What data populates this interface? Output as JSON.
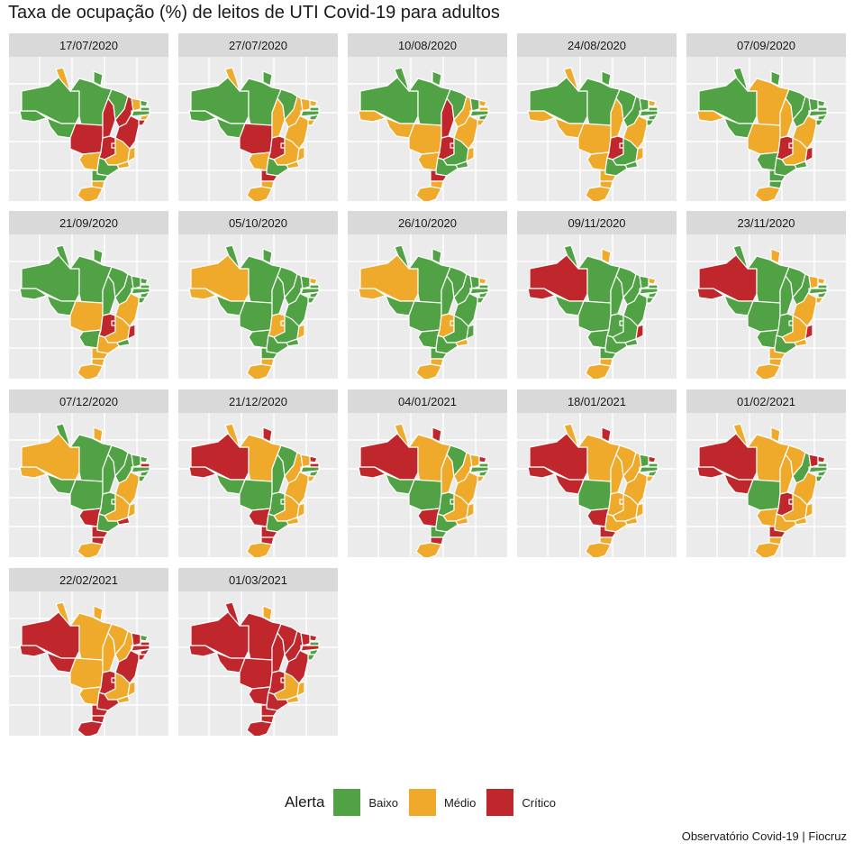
{
  "title": "Taxa de ocupação (%) de leitos de UTI Covid-19 para adultos",
  "caption": "Observatório Covid-19 | Fiocruz",
  "legend": {
    "title": "Alerta",
    "levels": [
      {
        "key": "B",
        "label": "Baixo",
        "color": "#50a244"
      },
      {
        "key": "M",
        "label": "Médio",
        "color": "#efaa2c"
      },
      {
        "key": "C",
        "label": "Crítico",
        "color": "#c0272d"
      }
    ]
  },
  "colors": {
    "panel_background": "#ebebeb",
    "strip_background": "#d9d9d9",
    "gridline": "#ffffff",
    "state_border": "#ffffff"
  },
  "states": [
    "AC",
    "AM",
    "RR",
    "AP",
    "PA",
    "RO",
    "MT",
    "TO",
    "MA",
    "PI",
    "CE",
    "RN",
    "PB",
    "PE",
    "AL",
    "SE",
    "BA",
    "GO",
    "DF",
    "MS",
    "MG",
    "ES",
    "RJ",
    "SP",
    "PR",
    "SC",
    "RS"
  ],
  "panels": [
    {
      "date": "17/07/2020",
      "alerts": {
        "AC": "B",
        "AM": "B",
        "RR": "M",
        "AP": "B",
        "PA": "B",
        "RO": "B",
        "MT": "C",
        "TO": "C",
        "MA": "B",
        "PI": "C",
        "CE": "M",
        "RN": "B",
        "PB": "B",
        "PE": "B",
        "AL": "M",
        "SE": "C",
        "BA": "C",
        "GO": "C",
        "DF": "C",
        "MS": "M",
        "MG": "M",
        "ES": "M",
        "RJ": "M",
        "SP": "B",
        "PR": "B",
        "SC": "M",
        "RS": "M"
      }
    },
    {
      "date": "27/07/2020",
      "alerts": {
        "AC": "B",
        "AM": "B",
        "RR": "M",
        "AP": "B",
        "PA": "B",
        "RO": "B",
        "MT": "C",
        "TO": "M",
        "MA": "B",
        "PI": "M",
        "CE": "M",
        "RN": "M",
        "PB": "B",
        "PE": "B",
        "AL": "B",
        "SE": "M",
        "BA": "M",
        "GO": "C",
        "DF": "C",
        "MS": "M",
        "MG": "M",
        "ES": "M",
        "RJ": "M",
        "SP": "B",
        "PR": "C",
        "SC": "M",
        "RS": "M"
      }
    },
    {
      "date": "10/08/2020",
      "alerts": {
        "AC": "M",
        "AM": "B",
        "RR": "B",
        "AP": "B",
        "PA": "B",
        "RO": "M",
        "MT": "M",
        "TO": "C",
        "MA": "B",
        "PI": "M",
        "CE": "B",
        "RN": "M",
        "PB": "M",
        "PE": "B",
        "AL": "B",
        "SE": "M",
        "BA": "M",
        "GO": "C",
        "DF": "C",
        "MS": "M",
        "MG": "B",
        "ES": "M",
        "RJ": "B",
        "SP": "B",
        "PR": "C",
        "SC": "M",
        "RS": "M"
      }
    },
    {
      "date": "24/08/2020",
      "alerts": {
        "AC": "M",
        "AM": "B",
        "RR": "M",
        "AP": "B",
        "PA": "B",
        "RO": "M",
        "MT": "M",
        "TO": "M",
        "MA": "B",
        "PI": "B",
        "CE": "B",
        "RN": "M",
        "PB": "B",
        "PE": "B",
        "AL": "B",
        "SE": "B",
        "BA": "M",
        "GO": "C",
        "DF": "C",
        "MS": "M",
        "MG": "B",
        "ES": "M",
        "RJ": "B",
        "SP": "B",
        "PR": "M",
        "SC": "M",
        "RS": "M"
      }
    },
    {
      "date": "07/09/2020",
      "alerts": {
        "AC": "M",
        "AM": "B",
        "RR": "B",
        "AP": "B",
        "PA": "M",
        "RO": "B",
        "MT": "M",
        "TO": "M",
        "MA": "B",
        "PI": "B",
        "CE": "B",
        "RN": "B",
        "PB": "B",
        "PE": "B",
        "AL": "B",
        "SE": "B",
        "BA": "M",
        "GO": "C",
        "DF": "C",
        "MS": "B",
        "MG": "M",
        "ES": "C",
        "RJ": "B",
        "SP": "B",
        "PR": "B",
        "SC": "B",
        "RS": "M"
      }
    },
    {
      "date": "21/09/2020",
      "alerts": {
        "AC": "B",
        "AM": "B",
        "RR": "B",
        "AP": "B",
        "PA": "B",
        "RO": "B",
        "MT": "M",
        "TO": "B",
        "MA": "B",
        "PI": "B",
        "CE": "B",
        "RN": "B",
        "PB": "B",
        "PE": "B",
        "AL": "B",
        "SE": "B",
        "BA": "M",
        "GO": "C",
        "DF": "C",
        "MS": "B",
        "MG": "M",
        "ES": "C",
        "RJ": "B",
        "SP": "M",
        "PR": "M",
        "SC": "M",
        "RS": "M"
      }
    },
    {
      "date": "05/10/2020",
      "alerts": {
        "AC": "M",
        "AM": "M",
        "RR": "B",
        "AP": "B",
        "PA": "B",
        "RO": "B",
        "MT": "B",
        "TO": "B",
        "MA": "B",
        "PI": "B",
        "CE": "B",
        "RN": "M",
        "PB": "B",
        "PE": "B",
        "AL": "B",
        "SE": "B",
        "BA": "B",
        "GO": "M",
        "DF": "M",
        "MS": "B",
        "MG": "B",
        "ES": "M",
        "RJ": "B",
        "SP": "B",
        "PR": "B",
        "SC": "M",
        "RS": "M"
      }
    },
    {
      "date": "26/10/2020",
      "alerts": {
        "AC": "M",
        "AM": "M",
        "RR": "B",
        "AP": "B",
        "PA": "B",
        "RO": "B",
        "MT": "B",
        "TO": "B",
        "MA": "B",
        "PI": "B",
        "CE": "B",
        "RN": "M",
        "PB": "B",
        "PE": "B",
        "AL": "B",
        "SE": "B",
        "BA": "B",
        "GO": "M",
        "DF": "M",
        "MS": "B",
        "MG": "B",
        "ES": "B",
        "RJ": "M",
        "SP": "B",
        "PR": "B",
        "SC": "M",
        "RS": "M"
      }
    },
    {
      "date": "09/11/2020",
      "alerts": {
        "AC": "C",
        "AM": "C",
        "RR": "B",
        "AP": "M",
        "PA": "B",
        "RO": "B",
        "MT": "B",
        "TO": "B",
        "MA": "B",
        "PI": "B",
        "CE": "B",
        "RN": "M",
        "PB": "B",
        "PE": "B",
        "AL": "B",
        "SE": "B",
        "BA": "B",
        "GO": "B",
        "DF": "B",
        "MS": "B",
        "MG": "B",
        "ES": "C",
        "RJ": "B",
        "SP": "B",
        "PR": "B",
        "SC": "M",
        "RS": "M"
      }
    },
    {
      "date": "23/11/2020",
      "alerts": {
        "AC": "C",
        "AM": "C",
        "RR": "B",
        "AP": "M",
        "PA": "B",
        "RO": "B",
        "MT": "B",
        "TO": "B",
        "MA": "B",
        "PI": "B",
        "CE": "M",
        "RN": "M",
        "PB": "B",
        "PE": "B",
        "AL": "B",
        "SE": "M",
        "BA": "M",
        "GO": "B",
        "DF": "B",
        "MS": "B",
        "MG": "M",
        "ES": "C",
        "RJ": "M",
        "SP": "B",
        "PR": "M",
        "SC": "M",
        "RS": "M"
      }
    },
    {
      "date": "07/12/2020",
      "alerts": {
        "AC": "M",
        "AM": "M",
        "RR": "B",
        "AP": "M",
        "PA": "B",
        "RO": "B",
        "MT": "B",
        "TO": "B",
        "MA": "B",
        "PI": "B",
        "CE": "B",
        "RN": "B",
        "PB": "C",
        "PE": "B",
        "AL": "B",
        "SE": "B",
        "BA": "M",
        "GO": "B",
        "DF": "B",
        "MS": "C",
        "MG": "M",
        "ES": "M",
        "RJ": "C",
        "SP": "B",
        "PR": "C",
        "SC": "C",
        "RS": "M"
      }
    },
    {
      "date": "21/12/2020",
      "alerts": {
        "AC": "C",
        "AM": "C",
        "RR": "M",
        "AP": "C",
        "PA": "M",
        "RO": "B",
        "MT": "B",
        "TO": "B",
        "MA": "B",
        "PI": "M",
        "CE": "M",
        "RN": "C",
        "PB": "C",
        "PE": "B",
        "AL": "B",
        "SE": "M",
        "BA": "M",
        "GO": "B",
        "DF": "B",
        "MS": "C",
        "MG": "M",
        "ES": "M",
        "RJ": "M",
        "SP": "B",
        "PR": "C",
        "SC": "C",
        "RS": "M"
      }
    },
    {
      "date": "04/01/2021",
      "alerts": {
        "AC": "C",
        "AM": "C",
        "RR": "M",
        "AP": "C",
        "PA": "M",
        "RO": "B",
        "MT": "B",
        "TO": "M",
        "MA": "B",
        "PI": "M",
        "CE": "M",
        "RN": "C",
        "PB": "B",
        "PE": "B",
        "AL": "B",
        "SE": "M",
        "BA": "M",
        "GO": "B",
        "DF": "B",
        "MS": "C",
        "MG": "M",
        "ES": "M",
        "RJ": "M",
        "SP": "B",
        "PR": "B",
        "SC": "C",
        "RS": "M"
      }
    },
    {
      "date": "18/01/2021",
      "alerts": {
        "AC": "C",
        "AM": "C",
        "RR": "M",
        "AP": "C",
        "PA": "M",
        "RO": "C",
        "MT": "B",
        "TO": "M",
        "MA": "M",
        "PI": "M",
        "CE": "B",
        "RN": "C",
        "PB": "B",
        "PE": "B",
        "AL": "B",
        "SE": "M",
        "BA": "M",
        "GO": "M",
        "DF": "M",
        "MS": "C",
        "MG": "M",
        "ES": "M",
        "RJ": "M",
        "SP": "M",
        "PR": "C",
        "SC": "M",
        "RS": "M"
      }
    },
    {
      "date": "01/02/2021",
      "alerts": {
        "AC": "C",
        "AM": "C",
        "RR": "M",
        "AP": "M",
        "PA": "M",
        "RO": "C",
        "MT": "B",
        "TO": "M",
        "MA": "M",
        "PI": "B",
        "CE": "C",
        "RN": "C",
        "PB": "B",
        "PE": "B",
        "AL": "B",
        "SE": "B",
        "BA": "M",
        "GO": "C",
        "DF": "C",
        "MS": "M",
        "MG": "M",
        "ES": "M",
        "RJ": "M",
        "SP": "M",
        "PR": "C",
        "SC": "M",
        "RS": "M"
      }
    },
    {
      "date": "22/02/2021",
      "alerts": {
        "AC": "C",
        "AM": "C",
        "RR": "M",
        "AP": "M",
        "PA": "M",
        "RO": "C",
        "MT": "M",
        "TO": "M",
        "MA": "M",
        "PI": "M",
        "CE": "C",
        "RN": "B",
        "PB": "C",
        "PE": "C",
        "AL": "C",
        "SE": "C",
        "BA": "C",
        "GO": "C",
        "DF": "C",
        "MS": "M",
        "MG": "M",
        "ES": "M",
        "RJ": "M",
        "SP": "C",
        "PR": "C",
        "SC": "C",
        "RS": "C"
      }
    },
    {
      "date": "01/03/2021",
      "alerts": {
        "AC": "C",
        "AM": "C",
        "RR": "C",
        "AP": "M",
        "PA": "C",
        "RO": "C",
        "MT": "C",
        "TO": "C",
        "MA": "C",
        "PI": "C",
        "CE": "C",
        "RN": "C",
        "PB": "B",
        "PE": "C",
        "AL": "B",
        "SE": "B",
        "BA": "C",
        "GO": "C",
        "DF": "C",
        "MS": "C",
        "MG": "M",
        "ES": "M",
        "RJ": "M",
        "SP": "C",
        "PR": "C",
        "SC": "C",
        "RS": "C"
      }
    }
  ]
}
